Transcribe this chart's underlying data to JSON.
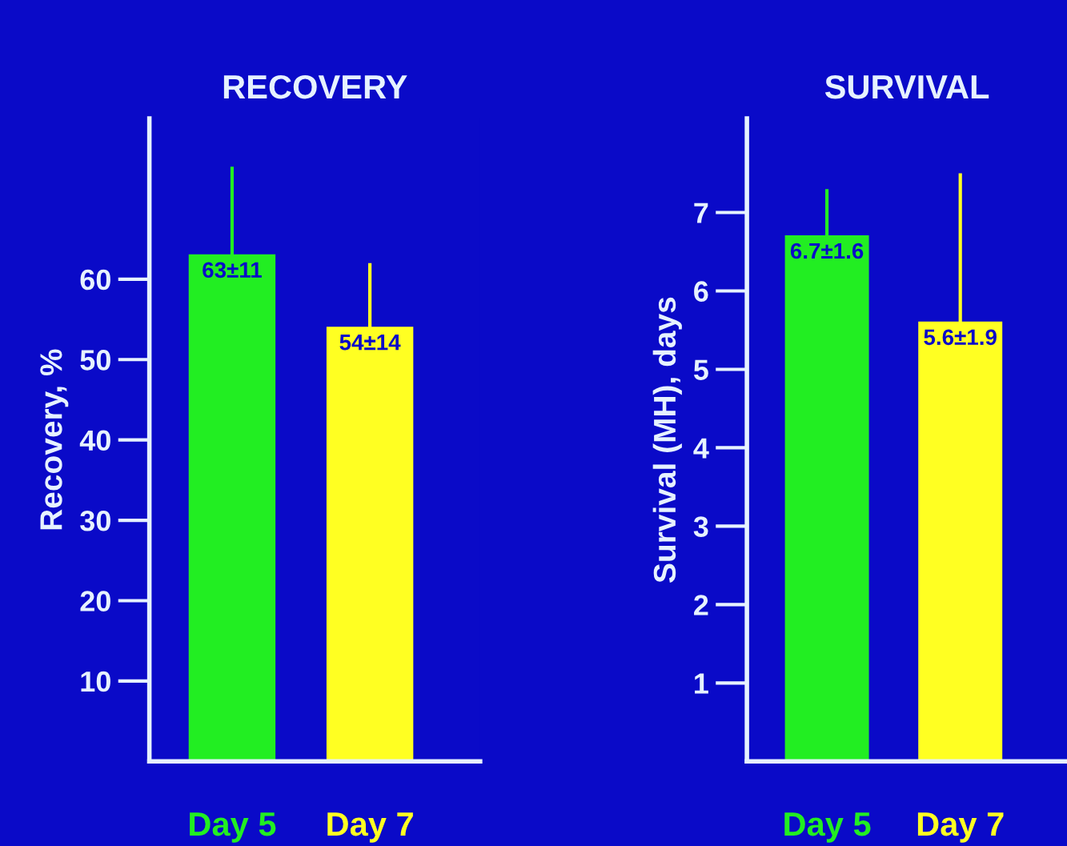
{
  "chart_data": [
    {
      "type": "bar",
      "title": "RECOVERY",
      "ylabel": "Recovery, %",
      "categories": [
        "Day 5",
        "Day 7"
      ],
      "values": [
        63,
        54
      ],
      "colors": [
        "#22ee22",
        "#ffff22"
      ],
      "errors": [
        [
          63,
          74
        ],
        [
          54,
          62
        ]
      ],
      "value_labels": [
        "63±11",
        "54±14"
      ],
      "ylim": [
        0,
        80
      ],
      "yticks": [
        10,
        20,
        30,
        40,
        50,
        60
      ]
    },
    {
      "type": "bar",
      "title": "SURVIVAL",
      "ylabel": "Survival (MH), days",
      "categories": [
        "Day 5",
        "Day 7"
      ],
      "values": [
        6.7,
        5.6
      ],
      "colors": [
        "#22ee22",
        "#ffff22"
      ],
      "errors": [
        [
          6.7,
          7.3
        ],
        [
          5.6,
          7.5
        ]
      ],
      "value_labels": [
        "6.7±1.6",
        "5.6±1.9"
      ],
      "ylim": [
        0,
        8.2
      ],
      "yticks": [
        1,
        2,
        3,
        4,
        5,
        6,
        7
      ]
    }
  ]
}
